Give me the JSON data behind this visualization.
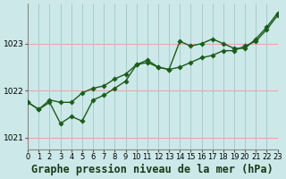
{
  "title": "Graphe pression niveau de la mer (hPa)",
  "bg_color": "#cce8e8",
  "grid_color_h": "#f0a0a0",
  "grid_color_v": "#a8cccc",
  "line_color": "#1a5c1a",
  "marker_color": "#1a5c1a",
  "xlim": [
    0,
    23
  ],
  "ylim": [
    1020.75,
    1023.85
  ],
  "yticks": [
    1021,
    1022,
    1023
  ],
  "xticks": [
    0,
    1,
    2,
    3,
    4,
    5,
    6,
    7,
    8,
    9,
    10,
    11,
    12,
    13,
    14,
    15,
    16,
    17,
    18,
    19,
    20,
    21,
    22,
    23
  ],
  "series1_x": [
    0,
    1,
    2,
    3,
    4,
    5,
    6,
    7,
    8,
    9,
    10,
    11,
    12,
    13,
    14,
    15,
    16,
    17,
    18,
    19,
    20,
    21,
    22,
    23
  ],
  "series1_y": [
    1021.75,
    1021.6,
    1021.75,
    1021.3,
    1021.45,
    1021.35,
    1021.8,
    1021.9,
    1022.05,
    1022.2,
    1022.55,
    1022.6,
    1022.5,
    1022.45,
    1022.5,
    1022.6,
    1022.7,
    1022.75,
    1022.85,
    1022.85,
    1022.95,
    1023.05,
    1023.3,
    1023.6
  ],
  "series2_x": [
    0,
    1,
    2,
    3,
    4,
    5,
    6,
    7,
    8,
    9,
    10,
    11,
    12,
    13,
    14,
    15,
    16,
    17,
    18,
    19,
    20,
    21,
    22,
    23
  ],
  "series2_y": [
    1021.75,
    1021.6,
    1021.8,
    1021.75,
    1021.75,
    1021.95,
    1022.05,
    1022.1,
    1022.25,
    1022.35,
    1022.55,
    1022.65,
    1022.5,
    1022.45,
    1023.05,
    1022.95,
    1023.0,
    1023.1,
    1023.0,
    1022.9,
    1022.9,
    1023.1,
    1023.35,
    1023.65
  ],
  "title_fontsize": 8.5,
  "tick_fontsize": 6.0
}
